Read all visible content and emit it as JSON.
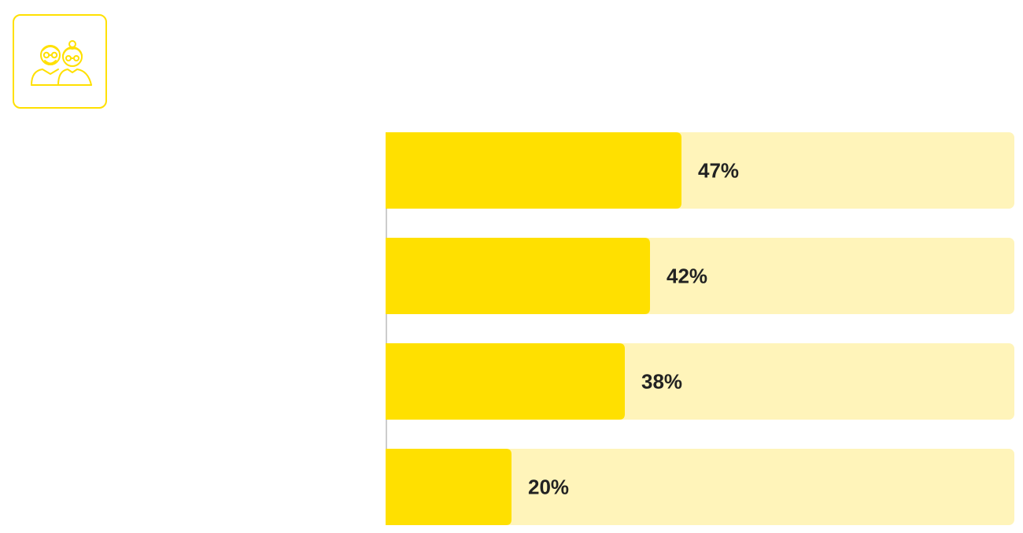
{
  "icon": {
    "name": "elderly-couple-icon",
    "color": "#FFE000"
  },
  "chart_data": {
    "type": "bar",
    "orientation": "horizontal",
    "categories": [
      "",
      "",
      "",
      ""
    ],
    "values": [
      47,
      42,
      38,
      20
    ],
    "labels": [
      "47%",
      "42%",
      "38%",
      "20%"
    ],
    "xlim": [
      0,
      100
    ],
    "unit": "%",
    "title": "",
    "xlabel": "",
    "ylabel": "",
    "grid": false,
    "colors": {
      "bar": "#FFE000",
      "track": "#FFF4BA",
      "label": "#222222",
      "axis": "#CCCCCC"
    }
  }
}
